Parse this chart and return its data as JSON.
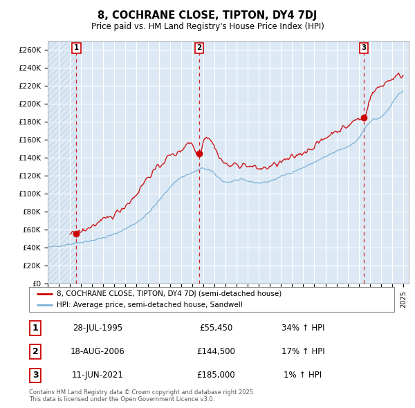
{
  "title_line1": "8, COCHRANE CLOSE, TIPTON, DY4 7DJ",
  "title_line2": "Price paid vs. HM Land Registry's House Price Index (HPI)",
  "ylim": [
    0,
    270000
  ],
  "yticks": [
    0,
    20000,
    40000,
    60000,
    80000,
    100000,
    120000,
    140000,
    160000,
    180000,
    200000,
    220000,
    240000,
    260000
  ],
  "ytick_labels": [
    "£0",
    "£20K",
    "£40K",
    "£60K",
    "£80K",
    "£100K",
    "£120K",
    "£140K",
    "£160K",
    "£180K",
    "£200K",
    "£220K",
    "£240K",
    "£260K"
  ],
  "red_color": "#cc0000",
  "blue_color": "#7ab0d4",
  "sale1_date": 1995.57,
  "sale1_price": 55450,
  "sale1_label": "1",
  "sale2_date": 2006.63,
  "sale2_price": 144500,
  "sale2_label": "2",
  "sale3_date": 2021.45,
  "sale3_price": 185000,
  "sale3_label": "3",
  "legend_red": "8, COCHRANE CLOSE, TIPTON, DY4 7DJ (semi-detached house)",
  "legend_blue": "HPI: Average price, semi-detached house, Sandwell",
  "table_rows": [
    {
      "num": "1",
      "date": "28-JUL-1995",
      "price": "£55,450",
      "hpi": "34% ↑ HPI"
    },
    {
      "num": "2",
      "date": "18-AUG-2006",
      "price": "£144,500",
      "hpi": "17% ↑ HPI"
    },
    {
      "num": "3",
      "date": "11-JUN-2021",
      "price": "£185,000",
      "hpi": "1% ↑ HPI"
    }
  ],
  "footnote": "Contains HM Land Registry data © Crown copyright and database right 2025.\nThis data is licensed under the Open Government Licence v3.0.",
  "background_color": "#ffffff",
  "plot_bg_color": "#dce9f5",
  "grid_color": "#ffffff",
  "hatch_color": "#c8d8e8"
}
